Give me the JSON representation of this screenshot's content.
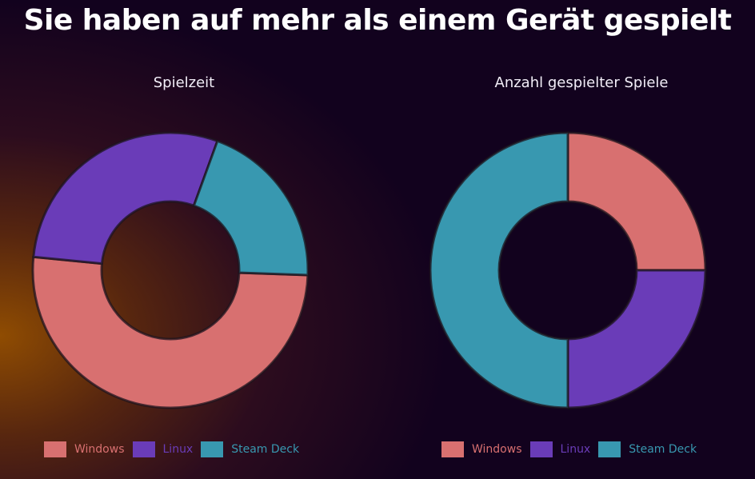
{
  "title": "Sie haben auf mehr als einem Gerät gespielt",
  "colors": {
    "Windows": "#d87070",
    "Linux": "#6a3cb8",
    "Steam Deck": "#3898b0"
  },
  "chart_data": [
    {
      "type": "pie",
      "variant": "doughnut",
      "title": "Spielzeit",
      "categories": [
        "Windows",
        "Linux",
        "Steam Deck"
      ],
      "values": [
        51.0,
        29.0,
        20.0
      ],
      "legend_position": "bottom"
    },
    {
      "type": "pie",
      "variant": "doughnut",
      "title": "Anzahl gespielter Spiele",
      "categories": [
        "Windows",
        "Linux",
        "Steam Deck"
      ],
      "values": [
        25.0,
        25.0,
        50.0
      ],
      "legend_position": "bottom"
    }
  ]
}
